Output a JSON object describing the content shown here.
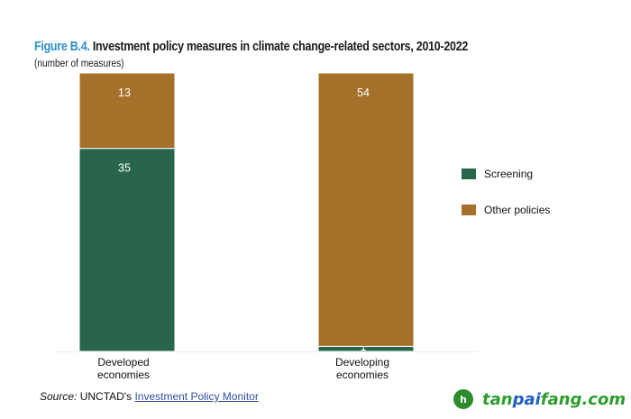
{
  "figure": {
    "number": "Figure B.4.",
    "title": "Investment policy measures in climate change-related sectors, 2010-2022",
    "subtitle": "(number of measures)"
  },
  "chart_data": {
    "type": "bar",
    "stacked": true,
    "normalized": true,
    "title": "Investment policy measures in climate change-related sectors, 2010-2022",
    "subtitle": "(number of measures)",
    "categories": [
      [
        "Developed",
        "economies"
      ],
      [
        "Developing",
        "economies"
      ]
    ],
    "series": [
      {
        "name": "Screening",
        "color": "#28654a",
        "values": [
          35,
          1
        ],
        "show_labels": [
          true,
          false
        ]
      },
      {
        "name": "Other policies",
        "color": "#a5712a",
        "values": [
          13,
          54
        ],
        "show_labels": [
          true,
          true
        ]
      }
    ],
    "xlabel": "",
    "ylabel": "",
    "grid": false,
    "legend_position": "right"
  },
  "legend": {
    "items": [
      {
        "label": "Screening",
        "color": "#28654a"
      },
      {
        "label": "Other policies",
        "color": "#a5712a"
      }
    ]
  },
  "source": {
    "label": "Source:",
    "text": " UNCTAD's ",
    "link_text": "Investment Policy Monitor"
  },
  "watermark": {
    "logo_glyph": "h",
    "part1": "tan",
    "part2": "pai",
    "part3": "fang.com"
  }
}
